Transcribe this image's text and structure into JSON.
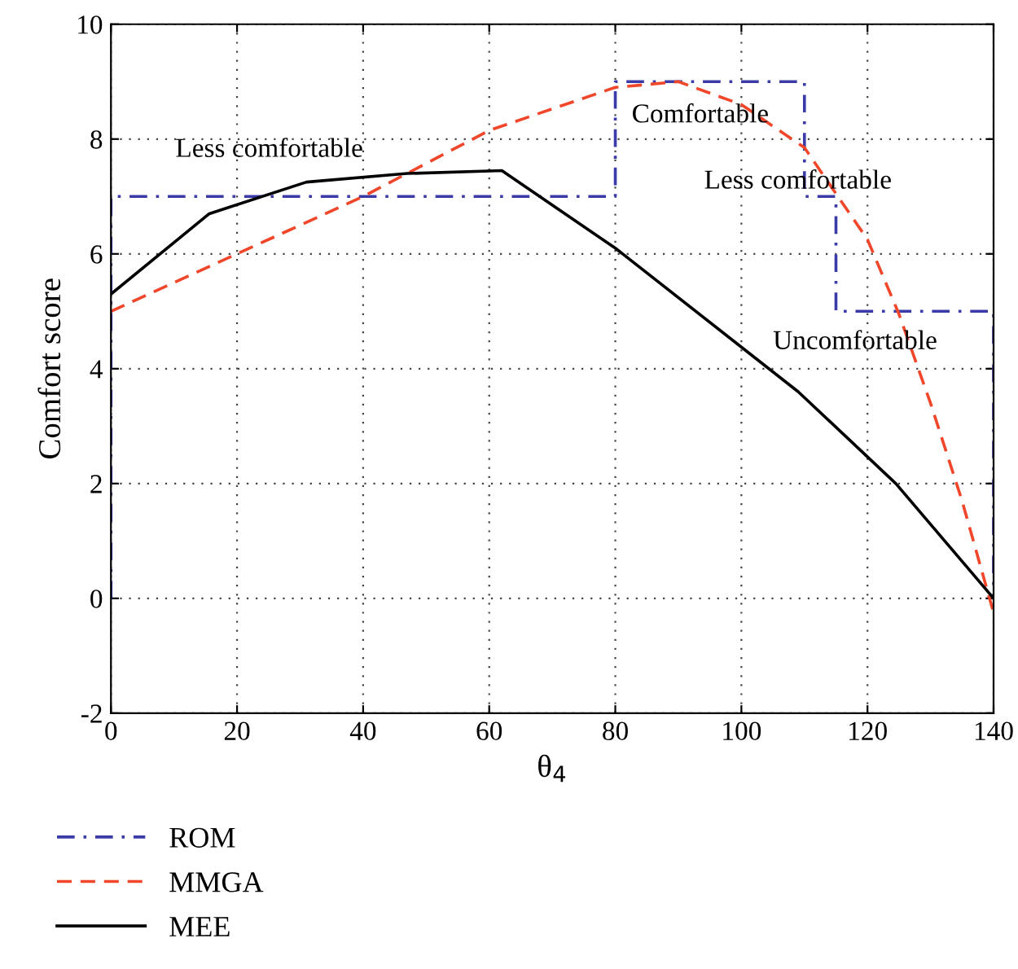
{
  "chart_data": {
    "type": "line",
    "xlabel": "θ$_{4}$",
    "ylabel": "Comfort score",
    "xlim": [
      0,
      140
    ],
    "xticks": [
      0,
      20,
      40,
      60,
      80,
      100,
      120,
      140
    ],
    "ylim": [
      -2,
      10
    ],
    "yticks": [
      -2,
      0,
      2,
      4,
      6,
      8,
      10
    ],
    "grid": true,
    "legend": "bottom left",
    "series": [
      {
        "name": "ROM",
        "color": "#3a3aa8",
        "line_style": "dashdot",
        "x": [
          0,
          0,
          80,
          80,
          110,
          110,
          115,
          115,
          140,
          140
        ],
        "values": [
          0,
          7,
          7,
          9,
          9,
          7,
          7,
          5,
          5,
          0
        ]
      },
      {
        "name": "MMGA",
        "color": "#f0462a",
        "line_style": "dashed",
        "x": [
          0,
          20,
          40,
          60,
          80,
          90,
          100,
          110,
          120,
          125,
          130,
          135,
          140
        ],
        "values": [
          5.0,
          6.0,
          7.0,
          8.15,
          8.9,
          9.0,
          8.6,
          7.85,
          6.25,
          4.95,
          3.4,
          1.7,
          -0.25
        ]
      },
      {
        "name": "MEE",
        "color": "#000000",
        "line_style": "solid",
        "x": [
          0,
          15.6,
          31,
          47,
          62,
          80,
          109,
          124.5,
          140
        ],
        "values": [
          5.3,
          6.7,
          7.25,
          7.4,
          7.45,
          6.1,
          3.6,
          2.0,
          0
        ]
      }
    ],
    "annotations": [
      "Less comfortable",
      "Comfortable",
      "Less comfortable",
      "Uncomfortable"
    ]
  }
}
